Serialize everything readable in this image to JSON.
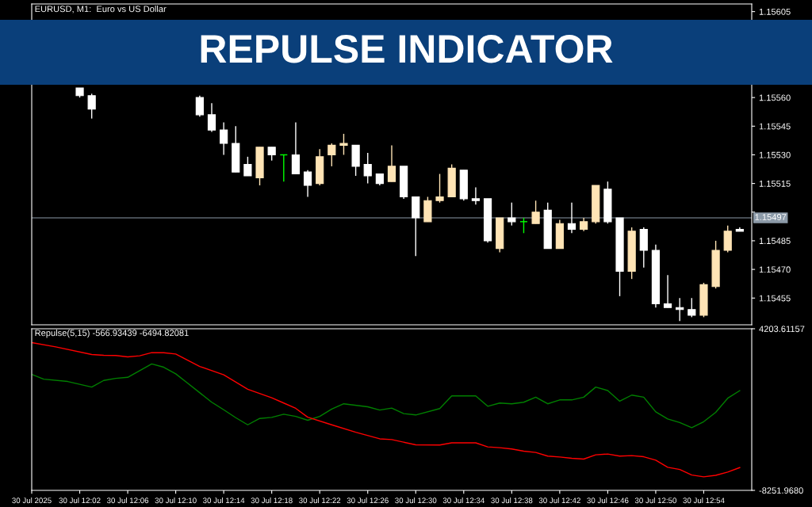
{
  "chart_data": [
    {
      "type": "candlestick",
      "title": "REPULSE INDICATOR",
      "annotations": [
        "EURUSD, M1:  Euro vs US Dollar"
      ],
      "x": [
        "2025-07-30T12:02",
        "2025-07-30T12:03",
        "2025-07-30T12:12",
        "2025-07-30T12:13",
        "2025-07-30T12:14",
        "2025-07-30T12:15",
        "2025-07-30T12:16",
        "2025-07-30T12:17",
        "2025-07-30T12:18",
        "2025-07-30T12:19",
        "2025-07-30T12:20",
        "2025-07-30T12:21",
        "2025-07-30T12:22",
        "2025-07-30T12:23",
        "2025-07-30T12:24",
        "2025-07-30T12:25",
        "2025-07-30T12:26",
        "2025-07-30T12:27",
        "2025-07-30T12:28",
        "2025-07-30T12:29",
        "2025-07-30T12:30",
        "2025-07-30T12:31",
        "2025-07-30T12:32",
        "2025-07-30T12:33",
        "2025-07-30T12:34",
        "2025-07-30T12:35",
        "2025-07-30T12:36",
        "2025-07-30T12:37",
        "2025-07-30T12:38",
        "2025-07-30T12:39",
        "2025-07-30T12:40",
        "2025-07-30T12:41",
        "2025-07-30T12:42",
        "2025-07-30T12:43",
        "2025-07-30T12:44",
        "2025-07-30T12:45",
        "2025-07-30T12:46",
        "2025-07-30T12:47",
        "2025-07-30T12:48",
        "2025-07-30T12:49",
        "2025-07-30T12:50",
        "2025-07-30T12:51",
        "2025-07-30T12:52",
        "2025-07-30T12:53",
        "2025-07-30T12:54",
        "2025-07-30T12:55",
        "2025-07-30T12:56",
        "2025-07-30T12:57"
      ],
      "ohlc": [
        [
          1.15565,
          1.15565,
          1.1556,
          1.15561
        ],
        [
          1.15561,
          1.15562,
          1.15549,
          1.15554
        ],
        [
          1.1556,
          1.15561,
          1.1555,
          1.15551
        ],
        [
          1.15551,
          1.15557,
          1.15542,
          1.15543
        ],
        [
          1.15543,
          1.15547,
          1.1553,
          1.15536
        ],
        [
          1.15536,
          1.15545,
          1.15521,
          1.15521
        ],
        [
          1.15525,
          1.15529,
          1.15519,
          1.15519
        ],
        [
          1.15518,
          1.15534,
          1.15514,
          1.15534
        ],
        [
          1.15534,
          1.15534,
          1.15527,
          1.1553
        ],
        [
          1.1553,
          1.1553,
          1.15516,
          1.1553
        ],
        [
          1.1553,
          1.15547,
          1.1552,
          1.1552
        ],
        [
          1.15521,
          1.15522,
          1.15508,
          1.15514
        ],
        [
          1.15515,
          1.15533,
          1.15514,
          1.15529
        ],
        [
          1.1553,
          1.15536,
          1.15524,
          1.15535
        ],
        [
          1.15535,
          1.15541,
          1.1553,
          1.15536
        ],
        [
          1.15535,
          1.15535,
          1.15519,
          1.15524
        ],
        [
          1.15525,
          1.15531,
          1.15515,
          1.15519
        ],
        [
          1.1552,
          1.1552,
          1.15514,
          1.15515
        ],
        [
          1.15516,
          1.15535,
          1.15516,
          1.15524
        ],
        [
          1.15524,
          1.15524,
          1.15507,
          1.15508
        ],
        [
          1.15508,
          1.15508,
          1.15477,
          1.15497
        ],
        [
          1.15495,
          1.15508,
          1.15495,
          1.15506
        ],
        [
          1.15506,
          1.1552,
          1.15505,
          1.15508
        ],
        [
          1.15508,
          1.15525,
          1.15508,
          1.15523
        ],
        [
          1.15522,
          1.15522,
          1.15506,
          1.15507
        ],
        [
          1.15507,
          1.15513,
          1.15504,
          1.15506
        ],
        [
          1.15507,
          1.15507,
          1.15484,
          1.15485
        ],
        [
          1.15481,
          1.15497,
          1.15479,
          1.15497
        ],
        [
          1.15497,
          1.15505,
          1.15493,
          1.15495
        ],
        [
          1.15495,
          1.15497,
          1.15489,
          1.15495
        ],
        [
          1.15494,
          1.15506,
          1.15494,
          1.155
        ],
        [
          1.15501,
          1.15505,
          1.15481,
          1.15481
        ],
        [
          1.15481,
          1.15496,
          1.15481,
          1.15494
        ],
        [
          1.15494,
          1.15505,
          1.15489,
          1.15491
        ],
        [
          1.15491,
          1.15497,
          1.1549,
          1.15495
        ],
        [
          1.15495,
          1.15514,
          1.15494,
          1.15514
        ],
        [
          1.15512,
          1.15516,
          1.15494,
          1.15495
        ],
        [
          1.15497,
          1.15497,
          1.15456,
          1.15469
        ],
        [
          1.15469,
          1.15492,
          1.15465,
          1.1549
        ],
        [
          1.15491,
          1.15492,
          1.15471,
          1.1548
        ],
        [
          1.1548,
          1.15483,
          1.1545,
          1.15452
        ],
        [
          1.15452,
          1.15467,
          1.1545,
          1.1545
        ],
        [
          1.1545,
          1.15455,
          1.15443,
          1.15449
        ],
        [
          1.15449,
          1.15455,
          1.15445,
          1.15446
        ],
        [
          1.15446,
          1.15463,
          1.15445,
          1.15462
        ],
        [
          1.15461,
          1.15485,
          1.1546,
          1.1548
        ],
        [
          1.1548,
          1.15493,
          1.15479,
          1.1549
        ],
        [
          1.15491,
          1.15492,
          1.1549,
          1.1549
        ]
      ],
      "colors": [
        "#ffffff",
        "#ffffff",
        "#ffffff",
        "#ffffff",
        "#ffffff",
        "#ffffff",
        "#ffffff",
        "#ffe4b5",
        "#ffffff",
        "#00ff00",
        "#ffffff",
        "#ffffff",
        "#ffe4b5",
        "#ffe4b5",
        "#ffe4b5",
        "#ffffff",
        "#ffffff",
        "#ffffff",
        "#ffe4b5",
        "#ffffff",
        "#ffffff",
        "#ffe4b5",
        "#ffe4b5",
        "#ffe4b5",
        "#ffffff",
        "#ffffff",
        "#ffffff",
        "#ffe4b5",
        "#ffffff",
        "#00ff00",
        "#ffe4b5",
        "#ffffff",
        "#ffe4b5",
        "#ffffff",
        "#ffe4b5",
        "#ffe4b5",
        "#ffffff",
        "#ffffff",
        "#ffe4b5",
        "#ffffff",
        "#ffffff",
        "#ffffff",
        "#ffffff",
        "#ffffff",
        "#ffe4b5",
        "#ffe4b5",
        "#ffe4b5",
        "#ffffff"
      ],
      "xlim": [
        "2025-07-30T11:58",
        "2025-07-30T12:58"
      ],
      "ylim": [
        1.15441,
        1.15609
      ],
      "yticks": [
        {
          "value": 1.15605,
          "label": "1.15605"
        },
        {
          "value": 1.1556,
          "label": "1.15560"
        },
        {
          "value": 1.15545,
          "label": "1.15545"
        },
        {
          "value": 1.1553,
          "label": "1.15530"
        },
        {
          "value": 1.15515,
          "label": "1.15515"
        },
        {
          "value": 1.155,
          "label": null
        },
        {
          "value": 1.15485,
          "label": "1.15485"
        },
        {
          "value": 1.1547,
          "label": "1.15470"
        },
        {
          "value": 1.15455,
          "label": "1.15455"
        }
      ],
      "ref_lines": [
        {
          "axis": "y",
          "value": 1.15497,
          "label": "1.15497",
          "color": "#8c9aa8"
        }
      ],
      "tick_labels": "y"
    },
    {
      "type": "line",
      "annotations": [
        "Repulse(5,15) -566.93439 -6494.82081"
      ],
      "series": [
        {
          "color": "#008000",
          "x": [
            "2025-07-30T11:58",
            "2025-07-30T11:59",
            "2025-07-30T12:01",
            "2025-07-30T12:03",
            "2025-07-30T12:04",
            "2025-07-30T12:05",
            "2025-07-30T12:06",
            "2025-07-30T12:08",
            "2025-07-30T12:09",
            "2025-07-30T12:10",
            "2025-07-30T12:11",
            "2025-07-30T12:13",
            "2025-07-30T12:14",
            "2025-07-30T12:15",
            "2025-07-30T12:16",
            "2025-07-30T12:17",
            "2025-07-30T12:18",
            "2025-07-30T12:19",
            "2025-07-30T12:20",
            "2025-07-30T12:21",
            "2025-07-30T12:22",
            "2025-07-30T12:23",
            "2025-07-30T12:24",
            "2025-07-30T12:26",
            "2025-07-30T12:27",
            "2025-07-30T12:28",
            "2025-07-30T12:29",
            "2025-07-30T12:30",
            "2025-07-30T12:32",
            "2025-07-30T12:33",
            "2025-07-30T12:35",
            "2025-07-30T12:36",
            "2025-07-30T12:37",
            "2025-07-30T12:38",
            "2025-07-30T12:39",
            "2025-07-30T12:40",
            "2025-07-30T12:41",
            "2025-07-30T12:42",
            "2025-07-30T12:43",
            "2025-07-30T12:44",
            "2025-07-30T12:45",
            "2025-07-30T12:46",
            "2025-07-30T12:47",
            "2025-07-30T12:48",
            "2025-07-30T12:49",
            "2025-07-30T12:50",
            "2025-07-30T12:51",
            "2025-07-30T12:52",
            "2025-07-30T12:53",
            "2025-07-30T12:54",
            "2025-07-30T12:55",
            "2025-07-30T12:56",
            "2025-07-30T12:57"
          ],
          "values": [
            690,
            320,
            140,
            -290,
            220,
            380,
            460,
            1490,
            1240,
            730,
            10,
            -1460,
            -2040,
            -2650,
            -3200,
            -2710,
            -2630,
            -2380,
            -2550,
            -2850,
            -2550,
            -1990,
            -1580,
            -1810,
            -2060,
            -1910,
            -2340,
            -2440,
            -1950,
            -970,
            -970,
            -1770,
            -1520,
            -1580,
            -1460,
            -1070,
            -1580,
            -1280,
            -1280,
            -1070,
            -290,
            -560,
            -1380,
            -910,
            -1070,
            -2200,
            -2750,
            -3020,
            -3420,
            -2960,
            -2240,
            -1150,
            -566.93439
          ]
        },
        {
          "color": "#ff0000",
          "x": [
            "2025-07-30T11:58",
            "2025-07-30T12:00",
            "2025-07-30T12:03",
            "2025-07-30T12:04",
            "2025-07-30T12:05",
            "2025-07-30T12:06",
            "2025-07-30T12:07",
            "2025-07-30T12:08",
            "2025-07-30T12:09",
            "2025-07-30T12:10",
            "2025-07-30T12:12",
            "2025-07-30T12:14",
            "2025-07-30T12:16",
            "2025-07-30T12:18",
            "2025-07-30T12:19",
            "2025-07-30T12:20",
            "2025-07-30T12:21",
            "2025-07-30T12:23",
            "2025-07-30T12:25",
            "2025-07-30T12:27",
            "2025-07-30T12:28",
            "2025-07-30T12:30",
            "2025-07-30T12:32",
            "2025-07-30T12:33",
            "2025-07-30T12:35",
            "2025-07-30T12:36",
            "2025-07-30T12:37",
            "2025-07-30T12:38",
            "2025-07-30T12:39",
            "2025-07-30T12:40",
            "2025-07-30T12:41",
            "2025-07-30T12:42",
            "2025-07-30T12:43",
            "2025-07-30T12:44",
            "2025-07-30T12:45",
            "2025-07-30T12:46",
            "2025-07-30T12:47",
            "2025-07-30T12:48",
            "2025-07-30T12:49",
            "2025-07-30T12:50",
            "2025-07-30T12:51",
            "2025-07-30T12:52",
            "2025-07-30T12:53",
            "2025-07-30T12:54",
            "2025-07-30T12:55",
            "2025-07-30T12:56",
            "2025-07-30T12:57"
          ],
          "values": [
            3140,
            2810,
            2220,
            2160,
            2140,
            2040,
            2120,
            2360,
            2360,
            2260,
            1300,
            660,
            -460,
            -1120,
            -1520,
            -1930,
            -2610,
            -3200,
            -3770,
            -4280,
            -4340,
            -4740,
            -4760,
            -4590,
            -4590,
            -4900,
            -4960,
            -5060,
            -5230,
            -5330,
            -5610,
            -5680,
            -5780,
            -5840,
            -5510,
            -5450,
            -5610,
            -5570,
            -5660,
            -5920,
            -6470,
            -6640,
            -7070,
            -7210,
            -7090,
            -6840,
            -6494.82081
          ]
        }
      ],
      "xlim": [
        "2025-07-30T11:58",
        "2025-07-30T12:58"
      ],
      "xticks": [
        {
          "value": "2025-07-30T11:58",
          "label": "30 Jul 2025"
        },
        {
          "value": "2025-07-30T12:02",
          "label": "30 Jul 12:02"
        },
        {
          "value": "2025-07-30T12:06",
          "label": "30 Jul 12:06"
        },
        {
          "value": "2025-07-30T12:10",
          "label": "30 Jul 12:10"
        },
        {
          "value": "2025-07-30T12:14",
          "label": "30 Jul 12:14"
        },
        {
          "value": "2025-07-30T12:18",
          "label": "30 Jul 12:18"
        },
        {
          "value": "2025-07-30T12:22",
          "label": "30 Jul 12:22"
        },
        {
          "value": "2025-07-30T12:26",
          "label": "30 Jul 12:26"
        },
        {
          "value": "2025-07-30T12:30",
          "label": "30 Jul 12:30"
        },
        {
          "value": "2025-07-30T12:34",
          "label": "30 Jul 12:34"
        },
        {
          "value": "2025-07-30T12:38",
          "label": "30 Jul 12:38"
        },
        {
          "value": "2025-07-30T12:42",
          "label": "30 Jul 12:42"
        },
        {
          "value": "2025-07-30T12:46",
          "label": "30 Jul 12:46"
        },
        {
          "value": "2025-07-30T12:50",
          "label": "30 Jul 12:50"
        },
        {
          "value": "2025-07-30T12:54",
          "label": "30 Jul 12:54"
        }
      ],
      "ylim": [
        -8251.968,
        4203.61157
      ],
      "yticks": [
        {
          "value": 4203.61157,
          "label": "4203.61157"
        },
        {
          "value": -8251.968,
          "label": "-8251.9680"
        }
      ]
    }
  ]
}
